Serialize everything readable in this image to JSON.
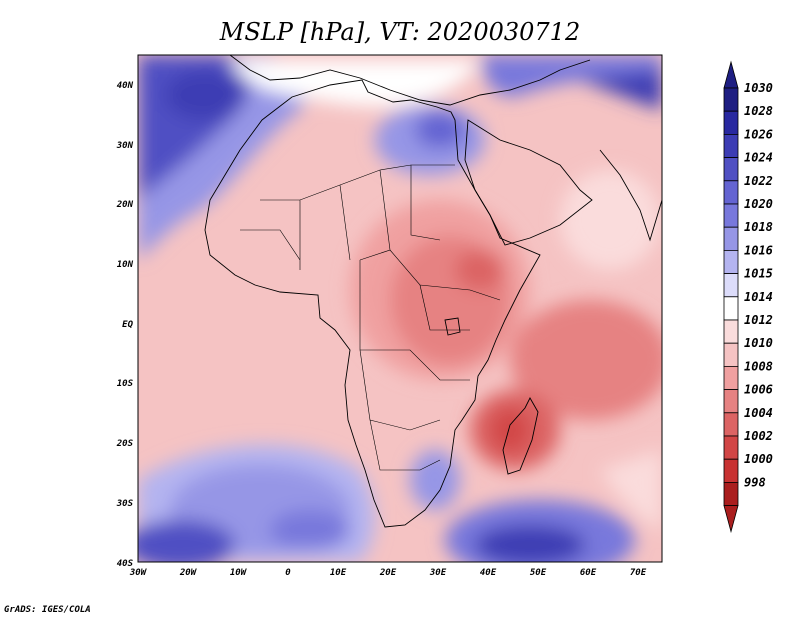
{
  "title": "MSLP [hPa], VT: 2020030712",
  "credit": "GrADS: IGES/COLA",
  "colors": {
    "land_border": "#000000",
    "frame": "#000000"
  },
  "axes": {
    "lon_ticks": [
      "30W",
      "20W",
      "10W",
      "0",
      "10E",
      "20E",
      "30E",
      "40E",
      "50E",
      "60E",
      "70E"
    ],
    "lat_ticks": [
      "40N",
      "30N",
      "20N",
      "10N",
      "EQ",
      "10S",
      "20S",
      "30S",
      "40S"
    ]
  },
  "colorbar": {
    "levels": [
      "1030",
      "1028",
      "1026",
      "1024",
      "1022",
      "1020",
      "1018",
      "1016",
      "1015",
      "1014",
      "1012",
      "1010",
      "1008",
      "1006",
      "1004",
      "1002",
      "1000",
      "998"
    ],
    "colors": [
      "#1e1e82",
      "#2828a0",
      "#3c3cb4",
      "#5050c3",
      "#6464d2",
      "#7878dc",
      "#9696e6",
      "#b4b4f0",
      "#dcdcfa",
      "#ffffff",
      "#fadcdc",
      "#f5c3c3",
      "#f0a0a0",
      "#e68282",
      "#dc6464",
      "#d24646",
      "#c83232",
      "#aa1e1e"
    ]
  }
}
